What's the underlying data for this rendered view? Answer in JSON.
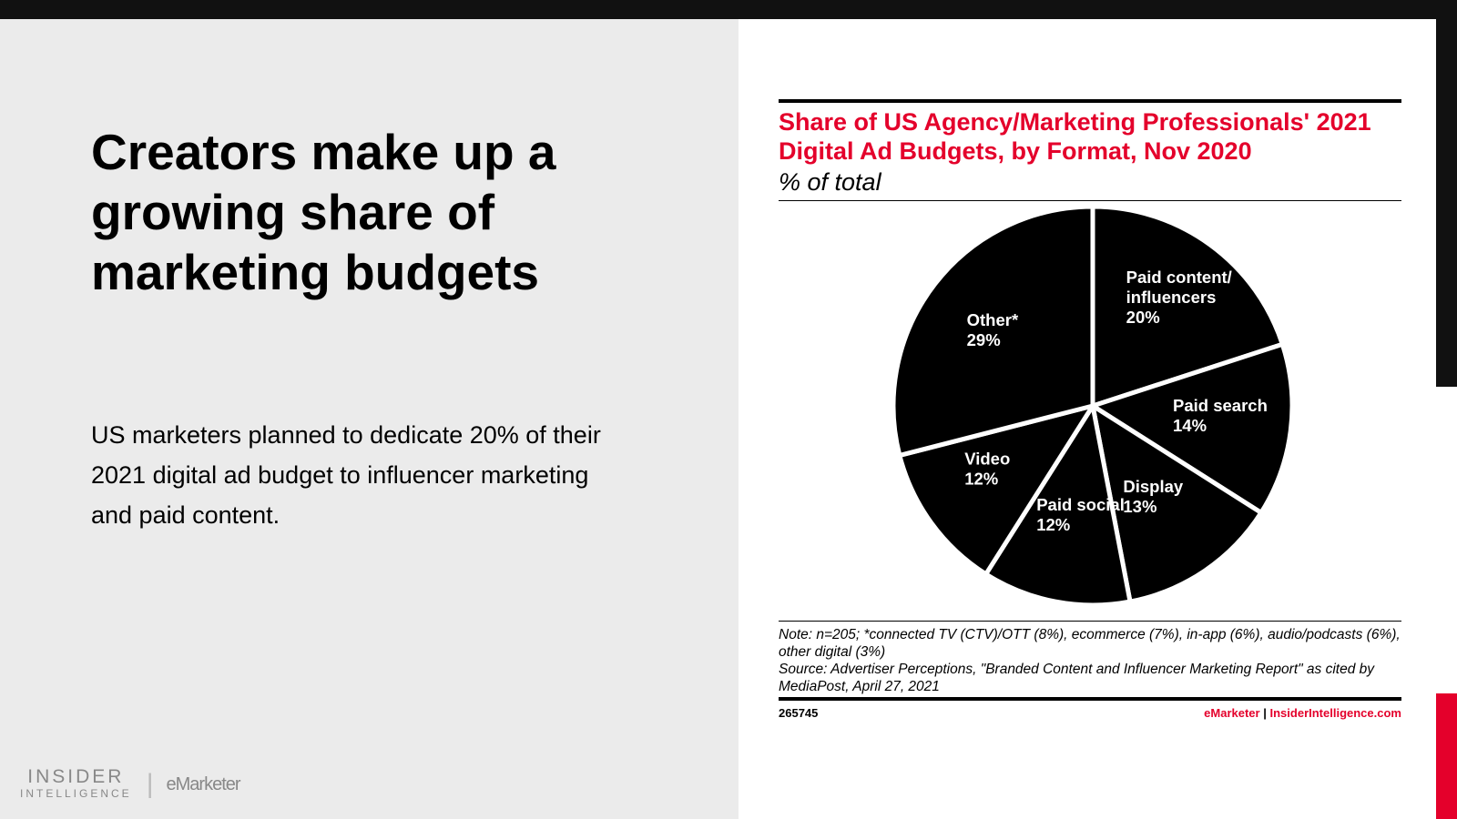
{
  "slide": {
    "headline": "Creators make up a growing share of marketing budgets",
    "body": "US marketers planned to dedicate 20% of their 2021 digital ad budget to influencer marketing and paid content.",
    "logo": {
      "primary": "INSIDER",
      "secondary": "INTELLIGENCE",
      "separator": "|",
      "brand": "eMarketer"
    }
  },
  "chart_data": {
    "type": "pie",
    "title": "Share of US Agency/Marketing Professionals' 2021 Digital Ad Budgets, by Format, Nov 2020",
    "subtitle": "% of total",
    "categories": [
      "Paid content/influencers",
      "Paid search",
      "Display",
      "Paid social",
      "Video",
      "Other*"
    ],
    "values": [
      20,
      14,
      13,
      12,
      12,
      29
    ],
    "value_labels": [
      "20%",
      "14%",
      "13%",
      "12%",
      "12%",
      "29%"
    ],
    "color": "#000000",
    "note": "Note: n=205; *connected TV (CTV)/OTT (8%), ecommerce (7%), in-app (6%), audio/podcasts (6%), other digital (3%)",
    "source": "Source: Advertiser Perceptions, \"Branded Content and Influencer Marketing Report\" as cited by MediaPost, April 27, 2021",
    "chart_id": "265745",
    "footer": {
      "brand": "eMarketer",
      "separator": "|",
      "site": "InsiderIntelligence.com"
    }
  }
}
